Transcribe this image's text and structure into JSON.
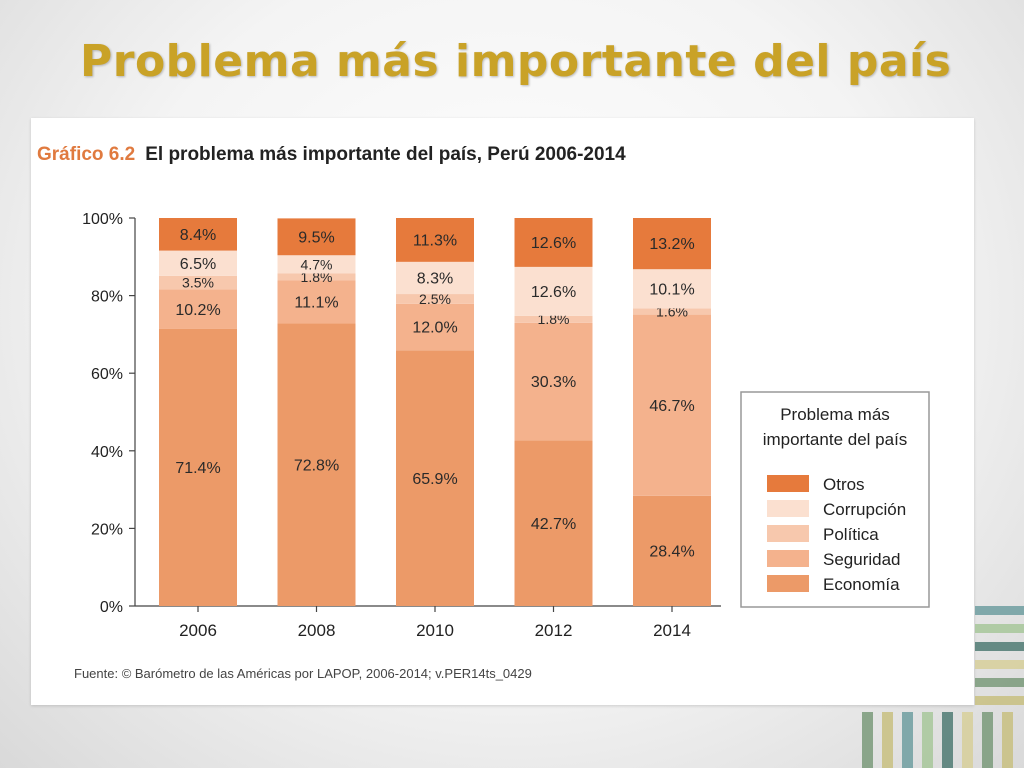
{
  "slide": {
    "title": "Problema más importante del país"
  },
  "figure": {
    "number": "Gráfico 6.2",
    "heading": "El problema más importante del país, Perú 2006-2014",
    "source": "Fuente: © Barómetro de las Américas por LAPOP, 2006-2014; v.PER14ts_0429"
  },
  "chart_data": {
    "type": "bar",
    "stacked": true,
    "categories": [
      "2006",
      "2008",
      "2010",
      "2012",
      "2014"
    ],
    "series": [
      {
        "name": "Economía",
        "color": "#ec9a68",
        "values": [
          71.4,
          72.8,
          65.9,
          42.7,
          28.4
        ],
        "labels": [
          "71.4%",
          "72.8%",
          "65.9%",
          "42.7%",
          "28.4%"
        ]
      },
      {
        "name": "Seguridad",
        "color": "#f4b28d",
        "values": [
          10.2,
          11.1,
          12.0,
          30.3,
          46.7
        ],
        "labels": [
          "10.2%",
          "11.1%",
          "12.0%",
          "30.3%",
          "46.7%"
        ]
      },
      {
        "name": "Política",
        "color": "#f7c8ad",
        "values": [
          3.5,
          1.8,
          2.5,
          1.8,
          1.6
        ],
        "labels": [
          "3.5%",
          "1.8%",
          "2.5%",
          "1.8%",
          "1.6%"
        ]
      },
      {
        "name": "Corrupción",
        "color": "#fbe0d0",
        "values": [
          6.5,
          4.7,
          8.3,
          12.6,
          10.1
        ],
        "labels": [
          "6.5%",
          "4.7%",
          "8.3%",
          "12.6%",
          "10.1%"
        ]
      },
      {
        "name": "Otros",
        "color": "#e67a3c",
        "values": [
          8.4,
          9.5,
          11.3,
          12.6,
          13.2
        ],
        "labels": [
          "8.4%",
          "9.5%",
          "11.3%",
          "12.6%",
          "13.2%"
        ]
      }
    ],
    "yticks": [
      "0%",
      "20%",
      "40%",
      "60%",
      "80%",
      "100%"
    ],
    "ylim": [
      0,
      100
    ],
    "legend": {
      "title_lines": [
        "Problema más",
        "importante del país"
      ],
      "order": [
        "Otros",
        "Corrupción",
        "Política",
        "Seguridad",
        "Economía"
      ],
      "placement": "right"
    }
  }
}
